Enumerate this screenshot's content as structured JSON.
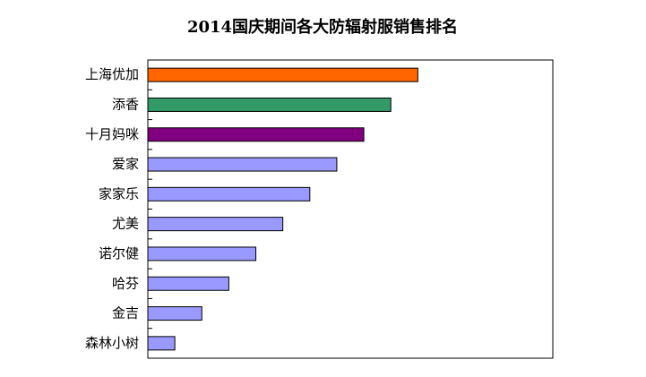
{
  "chart_data": {
    "type": "hbar",
    "title": "2014国庆期间各大防辐射服销售排名",
    "categories": [
      "上海优加",
      "添香",
      "十月妈咪",
      "爱家",
      "家家乐",
      "尤美",
      "诺尔健",
      "哈芬",
      "金吉",
      "森林小树"
    ],
    "values": [
      10,
      9,
      8,
      7,
      6,
      5,
      4,
      3,
      2,
      1
    ],
    "colors": [
      "#ff6600",
      "#339966",
      "#800080",
      "#9999ff",
      "#9999ff",
      "#9999ff",
      "#9999ff",
      "#9999ff",
      "#9999ff",
      "#9999ff"
    ],
    "xlim": [
      0,
      15
    ]
  }
}
